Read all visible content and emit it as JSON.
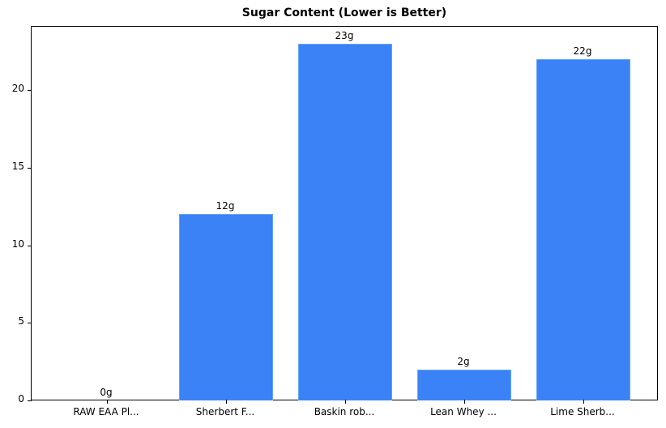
{
  "chart_data": {
    "type": "bar",
    "title": "Sugar Content (Lower is Better)",
    "xlabel": "",
    "ylabel": "",
    "categories": [
      "RAW EAA Pl...",
      "Sherbert F...",
      "Baskin rob...",
      "Lean Whey ...",
      "Lime Sherb..."
    ],
    "values": [
      0,
      12,
      23,
      2,
      22
    ],
    "value_labels": [
      "0g",
      "12g",
      "23g",
      "2g",
      "22g"
    ],
    "ylim": [
      0,
      24.15
    ],
    "yticks": [
      0,
      5,
      10,
      15,
      20
    ],
    "grid": false,
    "legend": null,
    "bar_color": "#3b82f6",
    "bar_edge_color": "#60a5fa"
  }
}
